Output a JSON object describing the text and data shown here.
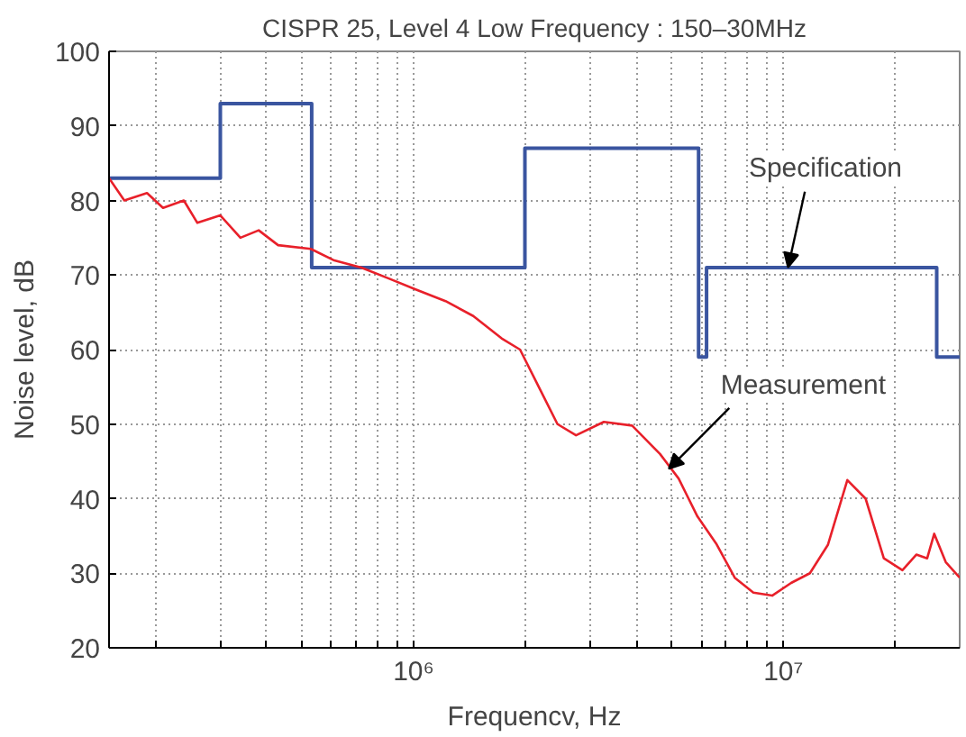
{
  "chart_data": {
    "type": "step",
    "title": "CISPR 25, Level 4 Low Frequency : 150–30MHz",
    "xlabel": "Frequencv, Hz",
    "ylabel": "Noise level, dB",
    "log": "x",
    "grid": true,
    "marker": "none",
    "line_style": "solid",
    "xlim": [
      150000,
      30000000
    ],
    "ylim": [
      20,
      100
    ],
    "xticks": [
      {
        "value": 200000,
        "label": null
      },
      {
        "value": 300000,
        "label": null
      },
      {
        "value": 400000,
        "label": null
      },
      {
        "value": 500000,
        "label": null
      },
      {
        "value": 600000,
        "label": null
      },
      {
        "value": 700000,
        "label": null
      },
      {
        "value": 800000,
        "label": null
      },
      {
        "value": 900000,
        "label": null
      },
      {
        "value": 1000000,
        "label": "10⁶"
      },
      {
        "value": 2000000,
        "label": null
      },
      {
        "value": 3000000,
        "label": null
      },
      {
        "value": 4000000,
        "label": null
      },
      {
        "value": 5000000,
        "label": null
      },
      {
        "value": 6000000,
        "label": null
      },
      {
        "value": 7000000,
        "label": null
      },
      {
        "value": 8000000,
        "label": null
      },
      {
        "value": 9000000,
        "label": null
      },
      {
        "value": 10000000,
        "label": "10⁷"
      },
      {
        "value": 20000000,
        "label": null
      }
    ],
    "yticks": [
      20,
      30,
      40,
      50,
      60,
      70,
      80,
      90,
      100
    ],
    "series": [
      {
        "color": "#3a55a0",
        "x": [
          150000,
          300000,
          530000,
          2000000,
          5900000,
          6200000,
          26000000,
          30000000
        ],
        "values": [
          83,
          93,
          71,
          87,
          59,
          71,
          59,
          59
        ]
      },
      {
        "type": "line",
        "color": "#e8202a",
        "x": [
          150000,
          165000,
          190000,
          210000,
          239000,
          260000,
          300000,
          340000,
          381000,
          430000,
          527000,
          607000,
          722000,
          860000,
          1020000,
          1220000,
          1450000,
          1730000,
          1940000,
          2180000,
          2450000,
          2750000,
          3270000,
          3900000,
          4640000,
          5210000,
          5860000,
          6580000,
          7390000,
          8300000,
          9330000,
          10500000,
          11800000,
          13200000,
          14900000,
          16700000,
          18700000,
          21000000,
          22900000,
          24500000,
          25600000,
          27500000,
          30000000
        ],
        "values": [
          83,
          80,
          81,
          79,
          80,
          77,
          78,
          75,
          76,
          74,
          73.5,
          72,
          71,
          69.5,
          68,
          66.5,
          64.5,
          61.5,
          60,
          55,
          50,
          48.5,
          50.3,
          49.8,
          46,
          42.7,
          37.6,
          34,
          29.4,
          27.4,
          27,
          28.7,
          30,
          33.8,
          42.5,
          40,
          32,
          30.4,
          32.5,
          32,
          35.3,
          31.5,
          29.4
        ]
      }
    ],
    "annotations": [
      {
        "text": "Specification",
        "x": 10300000,
        "y": 71
      },
      {
        "text": "Measurement",
        "x": 4900000,
        "y": 44
      }
    ]
  }
}
